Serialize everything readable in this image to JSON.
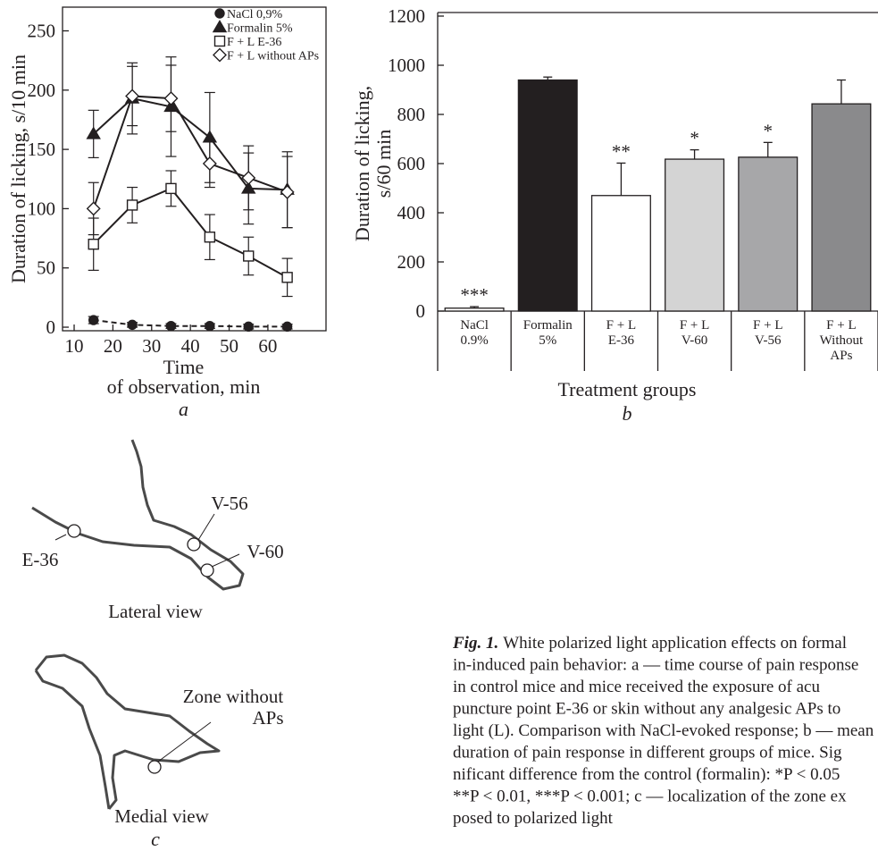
{
  "chart_data": [
    {
      "type": "line",
      "panel": "a",
      "y_label": "Duration of licking, s/10 min",
      "x_label": [
        "Time",
        "of observation, min"
      ],
      "x": [
        15,
        25,
        35,
        45,
        55,
        65
      ],
      "xlim": [
        7,
        75
      ],
      "xticks": [
        10,
        20,
        30,
        40,
        50,
        60
      ],
      "ylim": [
        -3,
        270
      ],
      "yticks": [
        0,
        50,
        100,
        150,
        200,
        250
      ],
      "legend": "upper right",
      "series": [
        {
          "name": "NaCl 0,9%",
          "color": "#231f20",
          "marker": "circle",
          "linestyle": "dashed",
          "values": [
            6,
            2,
            1,
            1,
            0.5,
            0.5
          ],
          "errors": [
            3,
            2,
            2,
            2,
            2,
            2
          ]
        },
        {
          "name": "Formalin 5%",
          "color": "#231f20",
          "marker": "triangle",
          "linestyle": "solid",
          "values": [
            163,
            193,
            186,
            160,
            117,
            116
          ],
          "errors": [
            20,
            30,
            42,
            38,
            30,
            32
          ]
        },
        {
          "name": "F + L E-36",
          "color": "#231f20",
          "marker": "square",
          "linestyle": "solid",
          "values": [
            70,
            103,
            117,
            76,
            60,
            42
          ],
          "errors": [
            22,
            15,
            15,
            19,
            16,
            16
          ]
        },
        {
          "name": "F + L without APs",
          "color": "#231f20",
          "marker": "diamond",
          "linestyle": "solid",
          "values": [
            100,
            195,
            193,
            138,
            126,
            114
          ],
          "errors": [
            22,
            25,
            28,
            20,
            27,
            30
          ]
        }
      ]
    },
    {
      "type": "bar",
      "panel": "b",
      "y_label": [
        "Duration of licking,",
        "s/60 min"
      ],
      "x_label": "Treatment groups",
      "categories": [
        [
          "NaCl",
          "0.9%"
        ],
        [
          "Formalin",
          "5%"
        ],
        [
          "F + L",
          "E-36"
        ],
        [
          "F + L",
          "V-60"
        ],
        [
          "F + L",
          "V-56"
        ],
        [
          "F + L",
          "Without",
          "APs"
        ]
      ],
      "values": [
        12,
        940,
        470,
        618,
        626,
        843
      ],
      "errors": [
        6,
        12,
        132,
        38,
        60,
        97
      ],
      "colors": [
        "#ffffff",
        "#231f20",
        "#ffffff",
        "#d4d4d4",
        "#a7a7a9",
        "#8a8a8c"
      ],
      "significance": [
        "***",
        null,
        "**",
        "*",
        "*",
        null
      ],
      "ylim": [
        0,
        1200
      ],
      "yticks": [
        0,
        200,
        400,
        600,
        800,
        1000,
        1200
      ]
    }
  ],
  "diagram": {
    "lateral": {
      "points": [
        "E-36",
        "V-56",
        "V-60"
      ],
      "title": "Lateral view"
    },
    "medial": {
      "zone": [
        "Zone without",
        "APs"
      ],
      "title": "Medial view"
    },
    "panel": "c"
  },
  "caption": {
    "label": "Fig. 1.",
    "lines": [
      "White polarized light application effects on formal",
      "in-induced pain behavior: a — time course of pain response",
      "in control mice and mice received the exposure of acu",
      "puncture point E-36 or skin without any analgesic APs to",
      "light (L). Comparison with NaCl-evoked response; b — mean",
      "duration of pain response in different groups of mice. Sig",
      "nificant difference from the control (formalin): *P < 0.05",
      "**P < 0.01, ***P < 0.001; c — localization of the zone ex",
      "posed to polarized light"
    ]
  }
}
